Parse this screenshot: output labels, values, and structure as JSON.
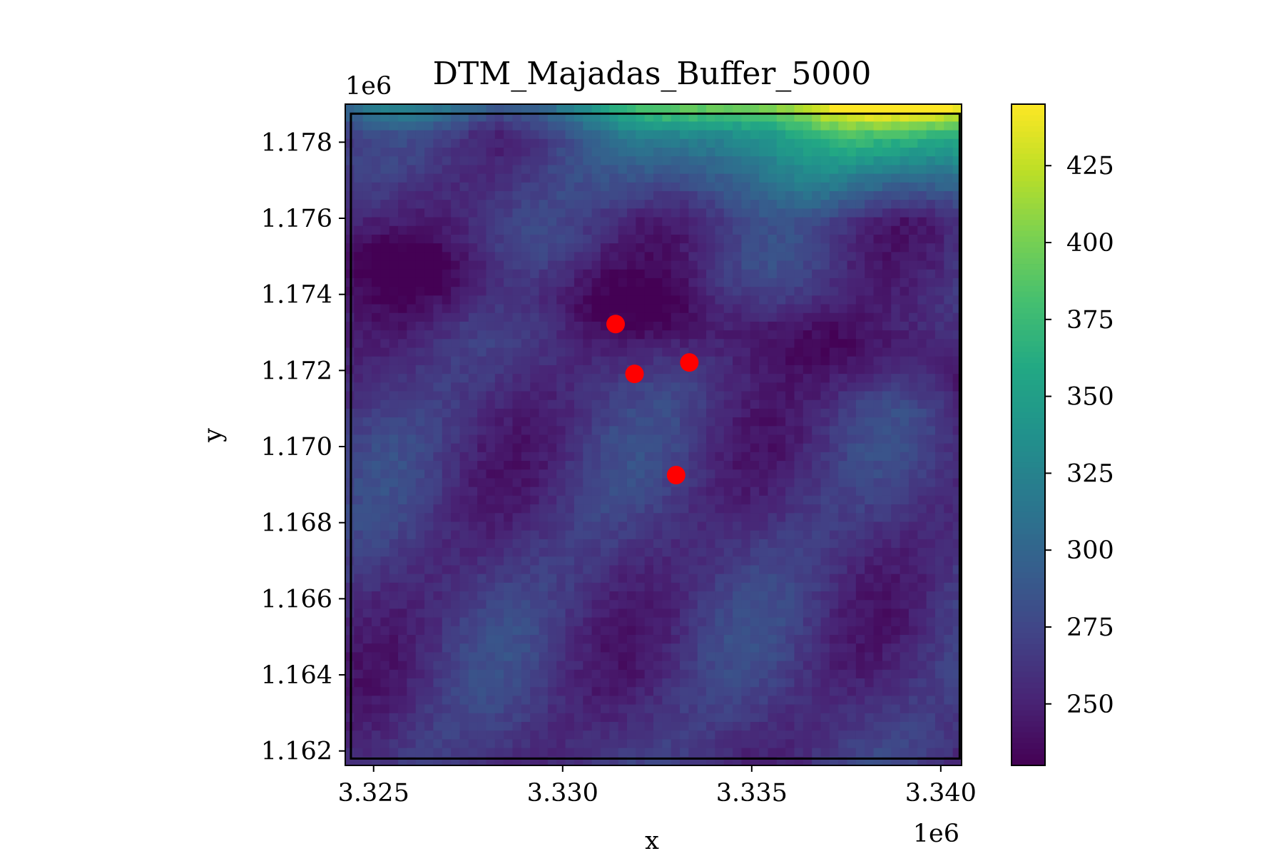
{
  "chart_data": {
    "type": "heatmap",
    "title": "DTM_Majadas_Buffer_5000",
    "xlabel": "x",
    "ylabel": "y",
    "x_offset_label": "1e6",
    "y_offset_label": "1e6",
    "xlim": [
      3.32425,
      3.34055
    ],
    "ylim": [
      1.16162,
      1.179
    ],
    "x_ticks": [
      {
        "value": 3.325,
        "label": "3.325"
      },
      {
        "value": 3.33,
        "label": "3.330"
      },
      {
        "value": 3.335,
        "label": "3.335"
      },
      {
        "value": 3.34,
        "label": "3.340"
      }
    ],
    "y_ticks": [
      {
        "value": 1.162,
        "label": "1.162"
      },
      {
        "value": 1.164,
        "label": "1.164"
      },
      {
        "value": 1.166,
        "label": "1.166"
      },
      {
        "value": 1.168,
        "label": "1.168"
      },
      {
        "value": 1.17,
        "label": "1.170"
      },
      {
        "value": 1.172,
        "label": "1.172"
      },
      {
        "value": 1.174,
        "label": "1.174"
      },
      {
        "value": 1.176,
        "label": "1.176"
      },
      {
        "value": 1.178,
        "label": "1.178"
      }
    ],
    "colormap": "viridis",
    "colorbar": {
      "vmin": 230,
      "vmax": 445,
      "ticks": [
        {
          "value": 250,
          "label": "250"
        },
        {
          "value": 275,
          "label": "275"
        },
        {
          "value": 300,
          "label": "300"
        },
        {
          "value": 325,
          "label": "325"
        },
        {
          "value": 350,
          "label": "350"
        },
        {
          "value": 375,
          "label": "375"
        },
        {
          "value": 400,
          "label": "400"
        },
        {
          "value": 425,
          "label": "425"
        }
      ]
    },
    "boundary_box": {
      "x": [
        3.3244,
        3.3405
      ],
      "y": [
        1.1618,
        1.17875
      ],
      "color": "#000000"
    },
    "points": {
      "color": "#ff0000",
      "values": [
        {
          "x": 3.3314,
          "y": 1.17322
        },
        {
          "x": 3.3319,
          "y": 1.17191
        },
        {
          "x": 3.33335,
          "y": 1.17221
        },
        {
          "x": 3.333,
          "y": 1.16925
        }
      ]
    },
    "grid": false
  }
}
